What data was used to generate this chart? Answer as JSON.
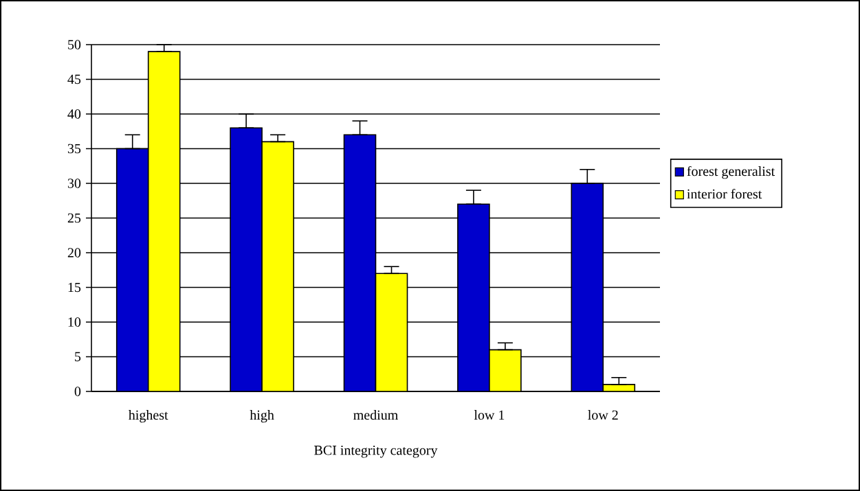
{
  "chart_data": {
    "type": "bar",
    "xlabel": "BCI integrity category",
    "categories": [
      "highest",
      "high",
      "medium",
      "low 1",
      "low 2"
    ],
    "series": [
      {
        "name": "forest generalist",
        "color": "#0000cc",
        "values": [
          35,
          38,
          37,
          27,
          30
        ],
        "errors": [
          [
            35,
            37
          ],
          [
            38,
            40
          ],
          [
            37,
            39
          ],
          [
            27,
            29
          ],
          [
            30,
            32
          ]
        ]
      },
      {
        "name": "interior forest",
        "color": "#ffff00",
        "values": [
          49,
          36,
          17,
          6,
          1
        ],
        "errors": [
          [
            49,
            50
          ],
          [
            36,
            37
          ],
          [
            17,
            18
          ],
          [
            6,
            7
          ],
          [
            1,
            2
          ]
        ]
      }
    ],
    "ylim": [
      0,
      50
    ],
    "yticks": [
      0,
      5,
      10,
      15,
      20,
      25,
      30,
      35,
      40,
      45,
      50
    ],
    "grid": "y",
    "legend": "right"
  }
}
